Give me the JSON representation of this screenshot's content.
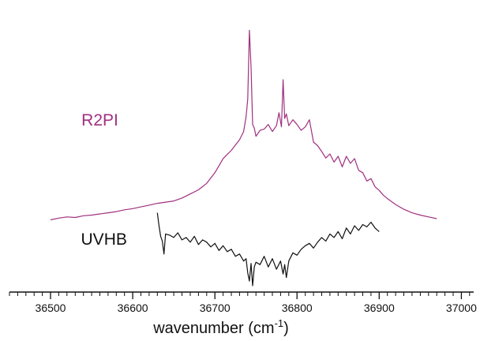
{
  "chart_data": {
    "type": "line",
    "xlabel": "wavenumber (cm",
    "xlabel_sup": "-1",
    "xlabel_close": ")",
    "xlim": [
      36450,
      37015
    ],
    "ylim": [
      -120,
      360
    ],
    "xticks": [
      36500,
      36600,
      36700,
      36800,
      36900,
      37000
    ],
    "xtick_labels": [
      "36500",
      "36600",
      "36700",
      "36800",
      "36900",
      "37000"
    ],
    "minor_tick_step": 10,
    "grid": false,
    "series": [
      {
        "name": "R2PI",
        "color": "#a0307f",
        "label_anchor": [
          36560,
          160
        ],
        "x": [
          36500,
          36510,
          36520,
          36530,
          36540,
          36550,
          36560,
          36570,
          36580,
          36590,
          36600,
          36610,
          36620,
          36630,
          36640,
          36650,
          36660,
          36670,
          36680,
          36690,
          36700,
          36705,
          36710,
          36715,
          36720,
          36725,
          36730,
          36735,
          36738,
          36740,
          36742,
          36744,
          36746,
          36748,
          36750,
          36752,
          36755,
          36760,
          36765,
          36770,
          36775,
          36778,
          36781,
          36783,
          36785,
          36787,
          36790,
          36795,
          36800,
          36805,
          36810,
          36815,
          36820,
          36825,
          36830,
          36835,
          36840,
          36845,
          36850,
          36855,
          36860,
          36865,
          36870,
          36875,
          36880,
          36885,
          36890,
          36895,
          36900,
          36905,
          36910,
          36920,
          36930,
          36940,
          36950,
          36960,
          36970
        ],
        "y": [
          0,
          3,
          5,
          4,
          7,
          8,
          10,
          12,
          14,
          17,
          19,
          22,
          25,
          28,
          30,
          32,
          37,
          44,
          51,
          62,
          80,
          92,
          104,
          111,
          118,
          127,
          136,
          150,
          175,
          205,
          322,
          260,
          162,
          156,
          142,
          146,
          152,
          154,
          162,
          150,
          160,
          182,
          158,
          238,
          172,
          180,
          160,
          170,
          162,
          152,
          158,
          170,
          132,
          126,
          116,
          105,
          112,
          98,
          108,
          90,
          108,
          96,
          104,
          84,
          80,
          66,
          70,
          56,
          50,
          42,
          36,
          26,
          18,
          12,
          8,
          5,
          2
        ]
      },
      {
        "name": "UVHB",
        "color": "#111111",
        "label_anchor": [
          36565,
          -42
        ],
        "x": [
          36630,
          36632,
          36634,
          36636,
          36638,
          36640,
          36645,
          36650,
          36655,
          36660,
          36665,
          36670,
          36675,
          36680,
          36685,
          36690,
          36695,
          36700,
          36705,
          36710,
          36715,
          36720,
          36725,
          36730,
          36735,
          36738,
          36740,
          36742,
          36744,
          36746,
          36748,
          36750,
          36755,
          36760,
          36765,
          36770,
          36775,
          36780,
          36783,
          36785,
          36787,
          36790,
          36795,
          36800,
          36805,
          36810,
          36815,
          36820,
          36825,
          36830,
          36835,
          36840,
          36845,
          36850,
          36855,
          36860,
          36865,
          36870,
          36875,
          36880,
          36885,
          36890,
          36895,
          36900
        ],
        "y": [
          12,
          -10,
          -28,
          -36,
          -58,
          -24,
          -26,
          -30,
          -22,
          -34,
          -30,
          -38,
          -28,
          -42,
          -34,
          -38,
          -46,
          -40,
          -52,
          -44,
          -54,
          -50,
          -62,
          -58,
          -70,
          -66,
          -90,
          -104,
          -74,
          -112,
          -80,
          -72,
          -76,
          -62,
          -80,
          -66,
          -84,
          -70,
          -92,
          -76,
          -98,
          -70,
          -56,
          -60,
          -50,
          -44,
          -40,
          -48,
          -38,
          -30,
          -36,
          -24,
          -30,
          -20,
          -32,
          -14,
          -24,
          -10,
          -18,
          -8,
          -12,
          -4,
          -14,
          -20
        ]
      }
    ]
  }
}
